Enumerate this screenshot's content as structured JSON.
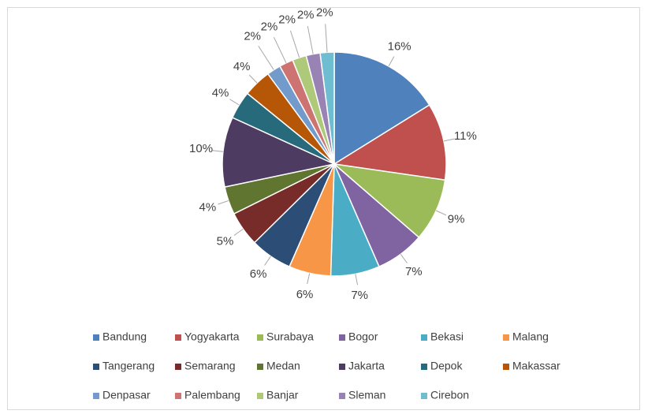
{
  "chart_data": {
    "type": "pie",
    "categories": [
      "Bandung",
      "Yogyakarta",
      "Surabaya",
      "Bogor",
      "Bekasi",
      "Malang",
      "Tangerang",
      "Semarang",
      "Medan",
      "Jakarta",
      "Depok",
      "Makassar",
      "Denpasar",
      "Palembang",
      "Banjar",
      "Sleman",
      "Cirebon"
    ],
    "values": [
      16,
      11,
      9,
      7,
      7,
      6,
      6,
      5,
      4,
      10,
      4,
      4,
      2,
      2,
      2,
      2,
      2
    ],
    "value_labels": [
      "16%",
      "11%",
      "9%",
      "7%",
      "7%",
      "6%",
      "6%",
      "5%",
      "4%",
      "10%",
      "4%",
      "4%",
      "2%",
      "2%",
      "2%",
      "2%",
      "2%"
    ],
    "colors": [
      "#4f81bd",
      "#c0504d",
      "#9bbb59",
      "#8064a2",
      "#4bacc6",
      "#f79646",
      "#2c4d75",
      "#772c2a",
      "#5f7530",
      "#4d3b62",
      "#276a7c",
      "#b65708",
      "#729aca",
      "#cd7371",
      "#afc97a",
      "#9983b5",
      "#6fbdd1"
    ],
    "legend": "bottom"
  }
}
